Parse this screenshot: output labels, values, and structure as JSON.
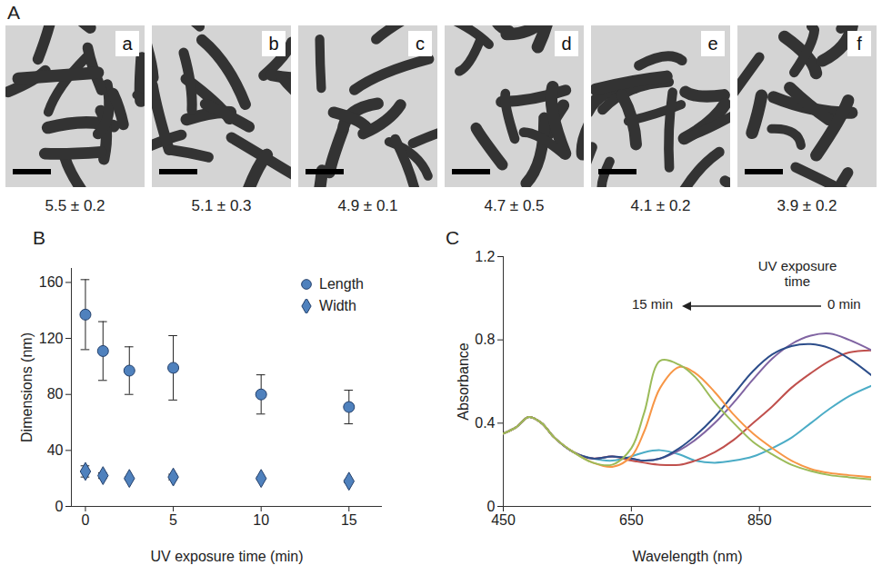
{
  "image_panel": {
    "panel_label": "A",
    "images": [
      {
        "label": "a",
        "caption": "5.5 ± 0.2"
      },
      {
        "label": "b",
        "caption": "5.1 ± 0.3"
      },
      {
        "label": "c",
        "caption": "4.9 ± 0.1"
      },
      {
        "label": "d",
        "caption": "4.7 ± 0.5"
      },
      {
        "label": "e",
        "caption": "4.1 ± 0.2"
      },
      {
        "label": "f",
        "caption": "3.9 ± 0.2"
      }
    ]
  },
  "chart_data": [
    {
      "panel_label": "B",
      "type": "scatter",
      "x_label": "UV exposure time (min)",
      "y_label": "Dimensions (nm)",
      "x": [
        0,
        1,
        2.5,
        5,
        10,
        15
      ],
      "xlim": [
        -0.8,
        16.9
      ],
      "xticks": [
        0,
        5,
        10,
        15
      ],
      "ylim": [
        0,
        170
      ],
      "yticks": [
        0,
        40,
        80,
        120,
        160
      ],
      "grid": false,
      "legend": "top-right",
      "series": [
        {
          "name": "Length",
          "marker": "circle",
          "color": "#4f81bd",
          "values": [
            137,
            111,
            97,
            99,
            80,
            71
          ],
          "errors": [
            25,
            21,
            17,
            23,
            14,
            12
          ]
        },
        {
          "name": "Width",
          "marker": "diamond",
          "color": "#4f81bd",
          "values": [
            25,
            22,
            20,
            21,
            20,
            18
          ],
          "errors": [
            4,
            2,
            1,
            2,
            1,
            1
          ]
        }
      ]
    },
    {
      "panel_label": "C",
      "type": "line",
      "x_label": "Wavelength (nm)",
      "y_label": "Absorbance",
      "x": [
        450,
        470,
        490,
        510,
        530,
        560,
        590,
        620,
        650,
        670,
        695,
        725,
        750,
        780,
        810,
        840,
        870,
        900,
        930,
        960,
        990,
        1025
      ],
      "xlim": [
        450,
        1025
      ],
      "xticks": [
        450,
        650,
        850
      ],
      "ylim": [
        0,
        1.2
      ],
      "yticks": [
        0,
        0.4,
        0.8,
        1.2
      ],
      "grid": false,
      "annotations": [
        "UV exposure time",
        "15 min",
        "0 min"
      ],
      "series": [
        {
          "color": "#4bacc6",
          "values": [
            0.35,
            0.38,
            0.43,
            0.4,
            0.33,
            0.26,
            0.23,
            0.22,
            0.24,
            0.26,
            0.27,
            0.25,
            0.22,
            0.21,
            0.22,
            0.24,
            0.28,
            0.33,
            0.4,
            0.47,
            0.53,
            0.58
          ]
        },
        {
          "color": "#c0504d",
          "values": [
            0.35,
            0.38,
            0.43,
            0.4,
            0.33,
            0.26,
            0.23,
            0.24,
            0.22,
            0.21,
            0.2,
            0.2,
            0.22,
            0.26,
            0.32,
            0.4,
            0.48,
            0.57,
            0.64,
            0.7,
            0.74,
            0.75
          ]
        },
        {
          "color": "#8064a2",
          "values": [
            0.35,
            0.38,
            0.43,
            0.4,
            0.33,
            0.26,
            0.23,
            0.24,
            0.23,
            0.22,
            0.23,
            0.27,
            0.32,
            0.4,
            0.5,
            0.61,
            0.71,
            0.78,
            0.82,
            0.83,
            0.8,
            0.75
          ]
        },
        {
          "color": "#2c4d8a",
          "values": [
            0.35,
            0.38,
            0.43,
            0.4,
            0.33,
            0.26,
            0.23,
            0.24,
            0.23,
            0.22,
            0.23,
            0.28,
            0.34,
            0.43,
            0.54,
            0.65,
            0.73,
            0.77,
            0.78,
            0.76,
            0.71,
            0.63
          ]
        },
        {
          "color": "#f79646",
          "values": [
            0.35,
            0.38,
            0.43,
            0.4,
            0.33,
            0.26,
            0.21,
            0.19,
            0.24,
            0.36,
            0.57,
            0.67,
            0.64,
            0.55,
            0.44,
            0.35,
            0.28,
            0.22,
            0.18,
            0.16,
            0.15,
            0.14
          ]
        },
        {
          "color": "#9bbb59",
          "values": [
            0.35,
            0.38,
            0.43,
            0.4,
            0.33,
            0.26,
            0.21,
            0.2,
            0.28,
            0.45,
            0.7,
            0.68,
            0.62,
            0.5,
            0.4,
            0.31,
            0.25,
            0.2,
            0.17,
            0.15,
            0.14,
            0.13
          ]
        }
      ]
    }
  ]
}
